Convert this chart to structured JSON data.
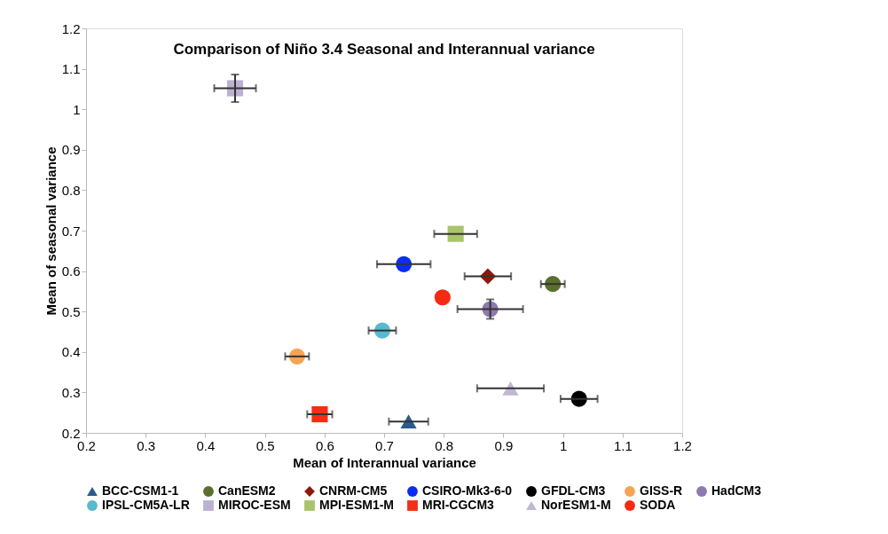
{
  "chart_data": {
    "type": "scatter",
    "title": "Comparison of Niño 3.4 Seasonal and Interannual variance",
    "xlabel": "Mean of Interannual variance",
    "ylabel": "Mean of seasonal variance",
    "xlim": [
      0.2,
      1.2
    ],
    "xticks": [
      0.2,
      0.3,
      0.4,
      0.5,
      0.6,
      0.7,
      0.8,
      0.9,
      1,
      1.1,
      1.2
    ],
    "ylim": [
      0.2,
      1.2
    ],
    "yticks": [
      0.2,
      0.3,
      0.4,
      0.5,
      0.6,
      0.7,
      0.8,
      0.9,
      1,
      1.1,
      1.2
    ],
    "grid": false,
    "legend": "bottom",
    "series": [
      {
        "name": "BCC-CSM1-1",
        "color": "#2a5b8e",
        "marker": "triangle",
        "x": [
          0.741
        ],
        "values": [
          0.228
        ],
        "xerrors": [
          0.033
        ]
      },
      {
        "name": "CanESM2",
        "color": "#5a6e2e",
        "marker": "circle",
        "x": [
          0.983
        ],
        "values": [
          0.568
        ],
        "xerrors": [
          0.02
        ]
      },
      {
        "name": "CNRM-CM5",
        "color": "#8b1a0a",
        "marker": "diamond",
        "x": [
          0.874
        ],
        "values": [
          0.587
        ],
        "xerrors": [
          0.039
        ]
      },
      {
        "name": "CSIRO-Mk3-6-0",
        "color": "#0b2cf5",
        "marker": "circle",
        "x": [
          0.733
        ],
        "values": [
          0.617
        ],
        "xerrors": [
          0.045
        ]
      },
      {
        "name": "GFDL-CM3",
        "color": "#000000",
        "marker": "circle",
        "x": [
          1.027
        ],
        "values": [
          0.284
        ],
        "xerrors": [
          0.031
        ]
      },
      {
        "name": "GISS-R",
        "color": "#f5a456",
        "marker": "circle",
        "x": [
          0.554
        ],
        "values": [
          0.389
        ],
        "xerrors": [
          0.02
        ]
      },
      {
        "name": "HadCM3",
        "color": "#8e79b0",
        "marker": "circle",
        "x": [
          0.878
        ],
        "values": [
          0.506
        ],
        "xerrors": [
          0.055
        ],
        "errors": [
          0.024
        ]
      },
      {
        "name": "IPSL-CM5A-LR",
        "color": "#57bace",
        "marker": "circle",
        "x": [
          0.697
        ],
        "values": [
          0.453
        ],
        "xerrors": [
          0.023
        ]
      },
      {
        "name": "MIROC-ESM",
        "color": "#bcb1d3",
        "marker": "square",
        "x": [
          0.45
        ],
        "values": [
          1.052
        ],
        "xerrors": [
          0.035
        ],
        "errors": [
          0.034
        ]
      },
      {
        "name": "MPI-ESM1-M",
        "color": "#a9c46a",
        "marker": "square",
        "x": [
          0.82
        ],
        "values": [
          0.692
        ],
        "xerrors": [
          0.036
        ]
      },
      {
        "name": "MRI-CGCM3",
        "color": "#f52f12",
        "marker": "square",
        "x": [
          0.592
        ],
        "values": [
          0.246
        ],
        "xerrors": [
          0.021
        ]
      },
      {
        "name": "NorESM1-M",
        "color": "#c0b6d6",
        "marker": "triangle",
        "x": [
          0.912
        ],
        "values": [
          0.31
        ],
        "xerrors": [
          0.056
        ]
      },
      {
        "name": "SODA",
        "color": "#f52a12",
        "marker": "circle",
        "x": [
          0.798
        ],
        "values": [
          0.535
        ]
      }
    ]
  }
}
